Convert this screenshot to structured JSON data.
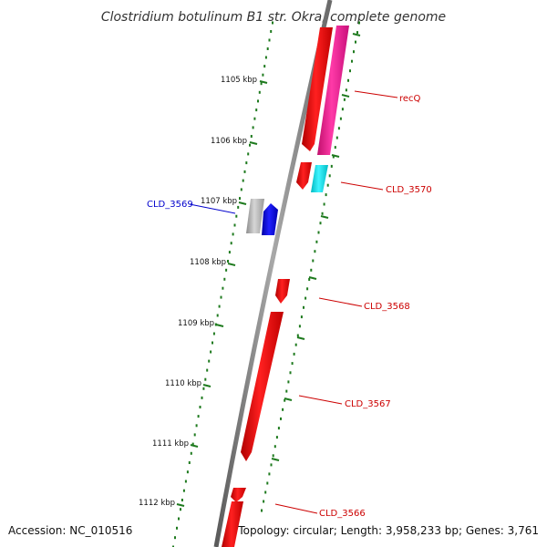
{
  "title": "Clostridium botulinum B1 str. Okra, complete genome",
  "accession": "Accession: NC_010516",
  "topology": "Topology: circular; Length: 3,958,233 bp; Genes: 3,761",
  "ruler_labels": [
    "1105 kbp",
    "1106 kbp",
    "1107 kbp",
    "1108 kbp",
    "1109 kbp",
    "1110 kbp",
    "1111 kbp",
    "1112 kbp"
  ],
  "gene_labels": {
    "recQ": "recQ",
    "cld3570": "CLD_3570",
    "cld3569": "CLD_3569",
    "cld3568": "CLD_3568",
    "cld3567": "CLD_3567",
    "cld3566": "CLD_3566"
  },
  "colors": {
    "backbone": "#808080",
    "ruler": "#1e7a1e",
    "gene_red": "#ff0000",
    "gene_pink": "#ff1493",
    "gene_cyan": "#00e5ee",
    "gene_blue": "#0000ee",
    "gene_gray": "#b0b0b0",
    "label_red": "#cc0000",
    "label_blue": "#0000cc"
  }
}
